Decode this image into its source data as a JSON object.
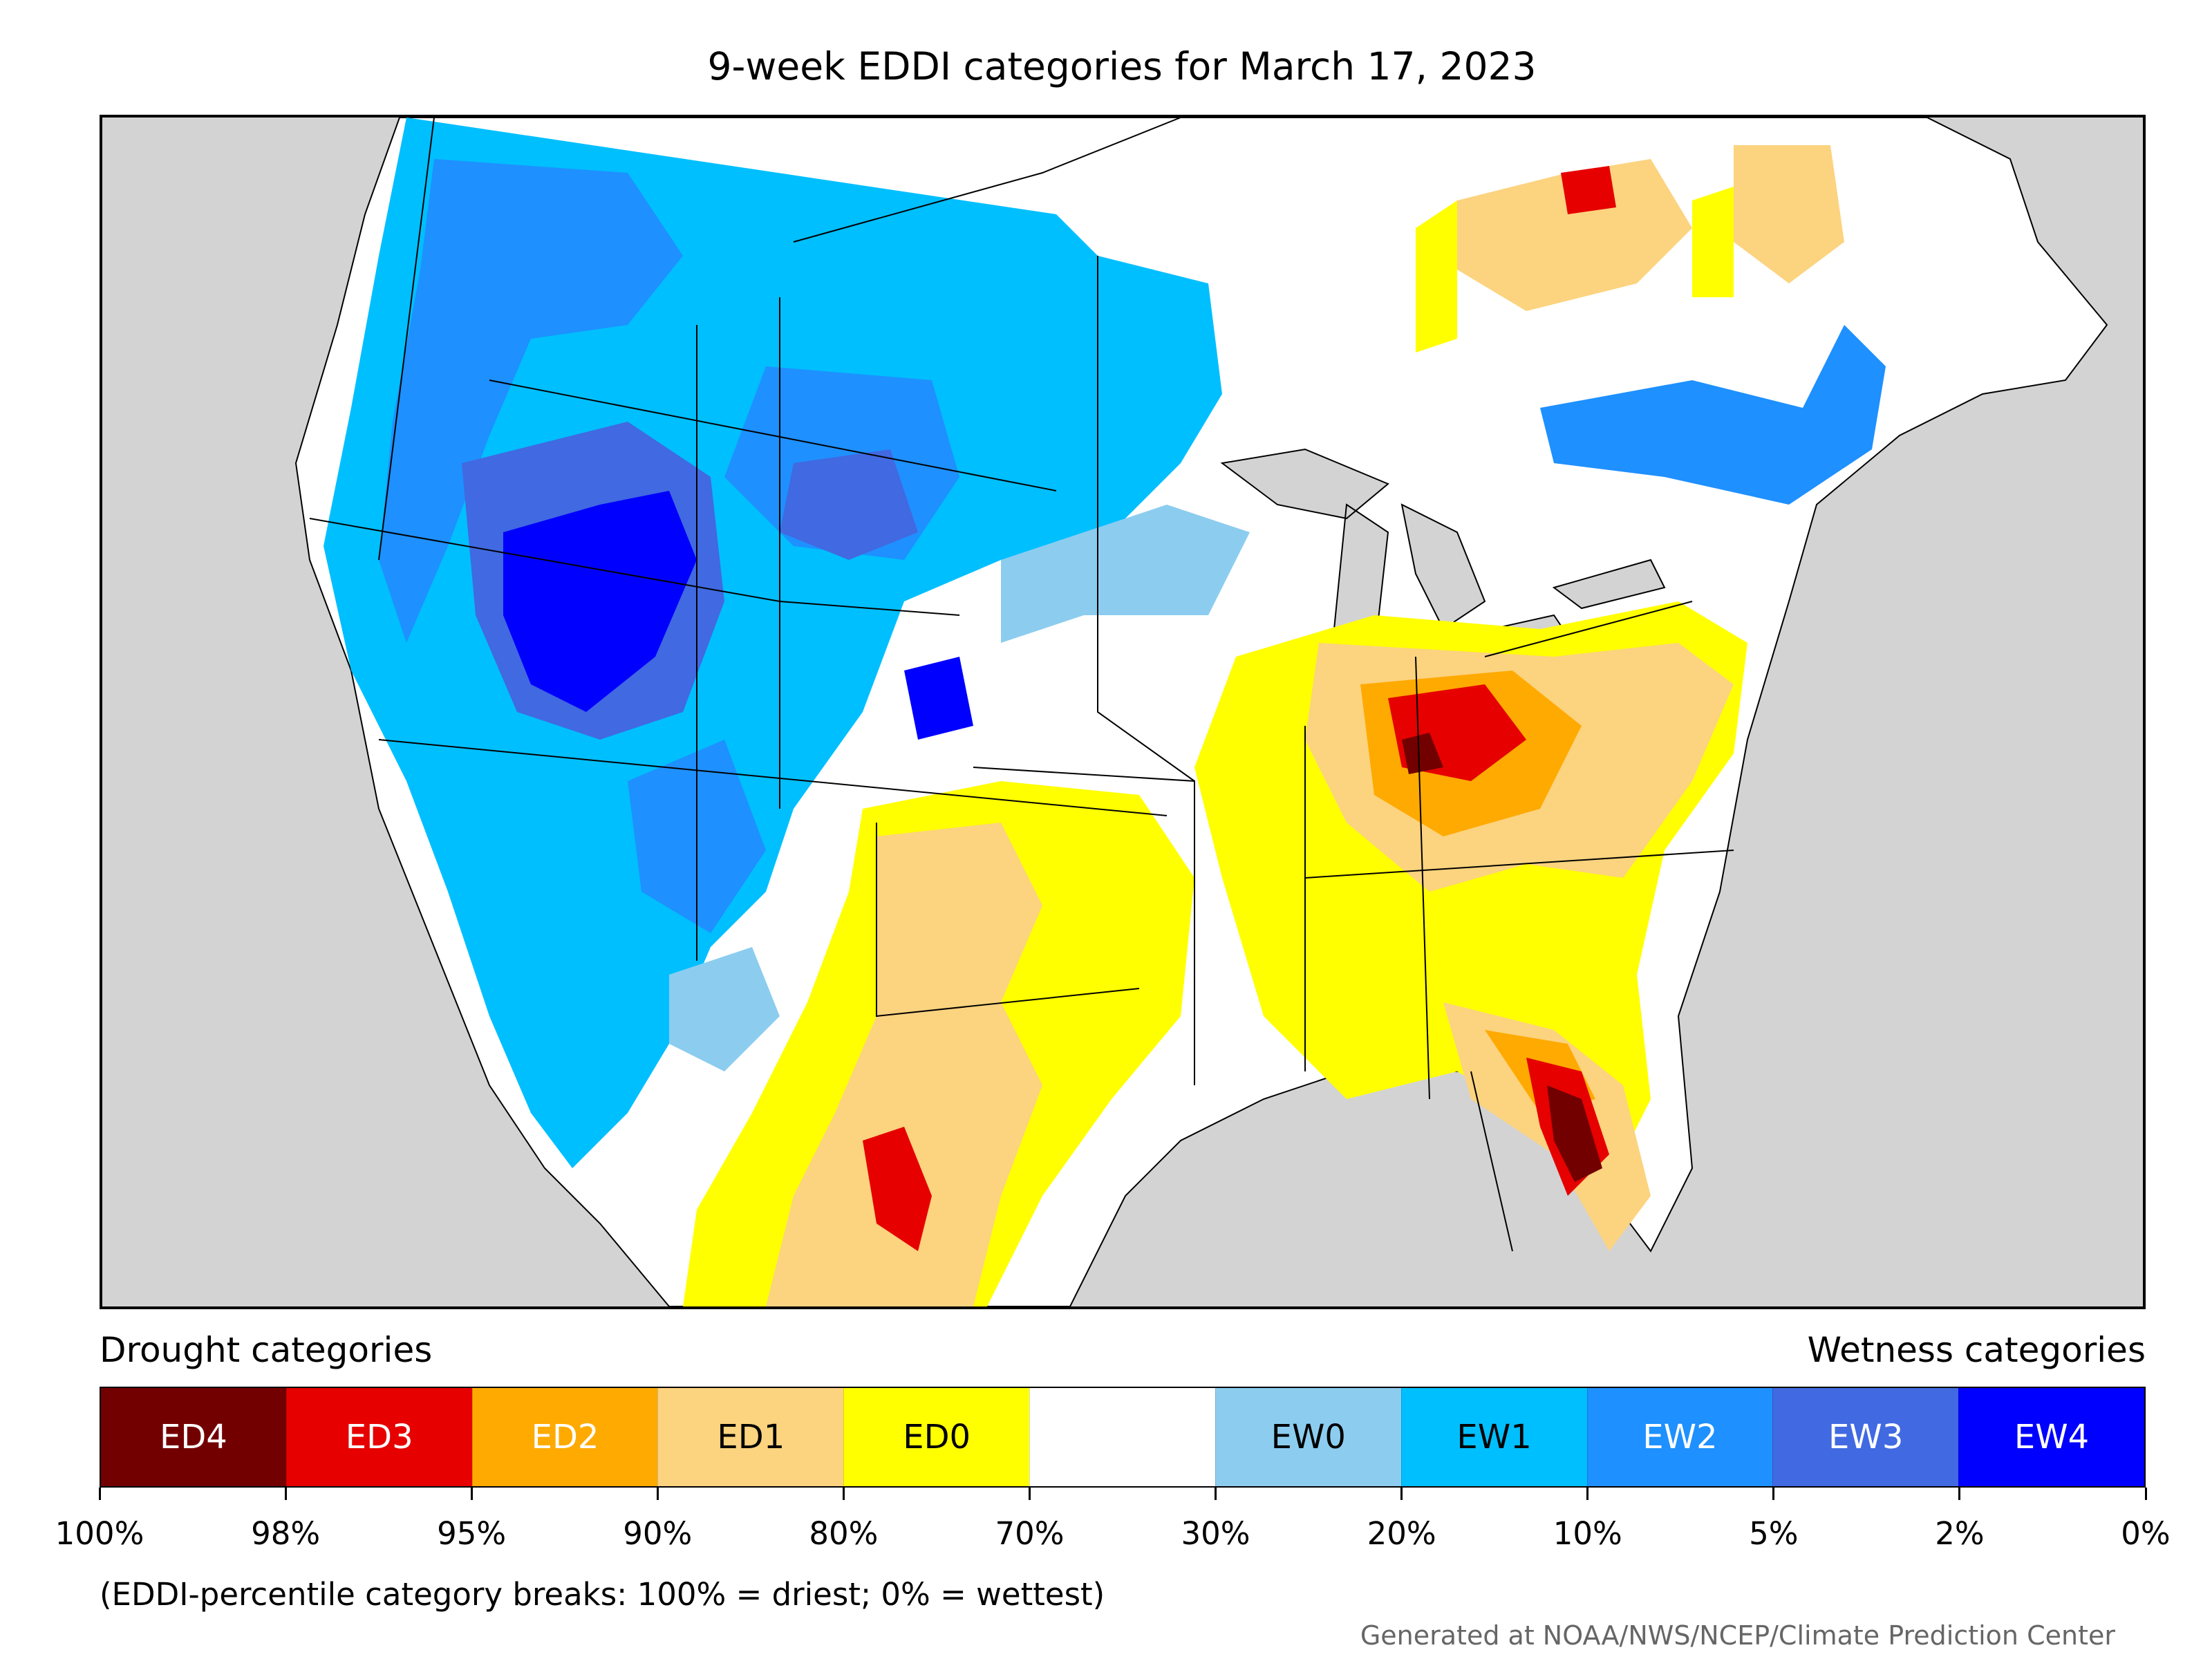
{
  "title": "9-week EDDI categories for March 17, 2023",
  "legend": {
    "left_label": "Drought categories",
    "right_label": "Wetness categories",
    "categories": [
      {
        "label": "ED4",
        "color": "#730000",
        "text_color": "#ffffff"
      },
      {
        "label": "ED3",
        "color": "#e60000",
        "text_color": "#ffffff"
      },
      {
        "label": "ED2",
        "color": "#ffaa00",
        "text_color": "#ffffff"
      },
      {
        "label": "ED1",
        "color": "#fcd37f",
        "text_color": "#000000"
      },
      {
        "label": "ED0",
        "color": "#ffff00",
        "text_color": "#000000"
      },
      {
        "label": "",
        "color": "#ffffff",
        "text_color": "#000000"
      },
      {
        "label": "EW0",
        "color": "#8ccdef",
        "text_color": "#000000"
      },
      {
        "label": "EW1",
        "color": "#00bfff",
        "text_color": "#000000"
      },
      {
        "label": "EW2",
        "color": "#1e90ff",
        "text_color": "#ffffff"
      },
      {
        "label": "EW3",
        "color": "#4169e1",
        "text_color": "#ffffff"
      },
      {
        "label": "EW4",
        "color": "#0000ff",
        "text_color": "#ffffff"
      }
    ],
    "breaks": [
      "100%",
      "98%",
      "95%",
      "90%",
      "80%",
      "70%",
      "30%",
      "20%",
      "10%",
      "5%",
      "2%",
      "0%"
    ]
  },
  "note": "(EDDI-percentile category breaks: 100% = driest; 0% = wettest)",
  "credit": "Generated at NOAA/NWS/NCEP/Climate Prediction Center",
  "colors": {
    "land_outside": "#d3d3d3",
    "boundary": "#000000"
  }
}
